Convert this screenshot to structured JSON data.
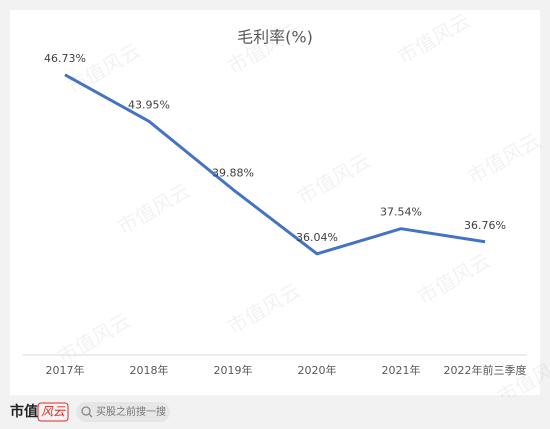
{
  "chart_data": {
    "type": "line",
    "title": "毛利率(%)",
    "categories": [
      "2017年",
      "2018年",
      "2019年",
      "2020年",
      "2021年",
      "2022年前三季度"
    ],
    "series": [
      {
        "name": "毛利率",
        "color": "#4472c4",
        "values": [
          46.73,
          43.95,
          39.88,
          36.04,
          37.54,
          36.76
        ],
        "value_labels": [
          "46.73%",
          "43.95%",
          "39.88%",
          "36.04%",
          "37.54%",
          "36.76%"
        ]
      }
    ],
    "ylim": [
      30,
      50
    ],
    "watermark": "市值风云"
  },
  "footer": {
    "logo": "市值",
    "logo_accent": "风云",
    "search": "买股之前搜一搜"
  }
}
